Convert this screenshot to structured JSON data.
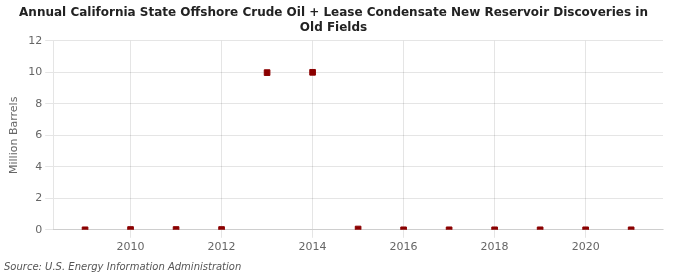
{
  "chart_data": {
    "type": "scatter",
    "title": "Annual California State Offshore Crude Oil + Lease Condensate New Reservoir Discoveries in\nOld Fields",
    "ylabel": "Million Barrels",
    "annotations": [
      "Source: U.S. Energy Information Administration"
    ],
    "x": [
      2009,
      2010,
      2011,
      2012,
      2013,
      2014,
      2015,
      2016,
      2017,
      2018,
      2019,
      2020,
      2021
    ],
    "values": [
      0.0,
      0.02,
      0.02,
      0.02,
      9.98,
      10.0,
      0.05,
      0.0,
      0.0,
      0.0,
      0.0,
      0.0,
      0.0
    ],
    "color": "#8b0000",
    "marker": "square",
    "xlim": [
      2008.3,
      2021.7
    ],
    "ylim": [
      0,
      12
    ],
    "xticks": [
      2010,
      2012,
      2014,
      2016,
      2018,
      2020
    ],
    "yticks": [
      0,
      2,
      4,
      6,
      8,
      10,
      12
    ],
    "grid": true
  }
}
